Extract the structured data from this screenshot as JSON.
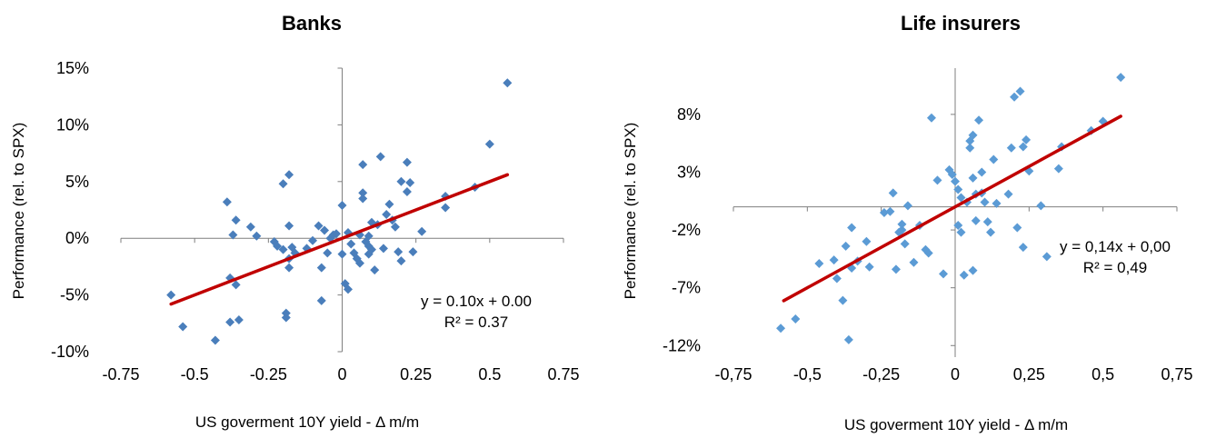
{
  "chart_data": [
    {
      "type": "scatter",
      "title": "Banks",
      "xlabel": "US goverment 10Y yield - Δ m/m",
      "ylabel": "Performance (rel. to SPX)",
      "xlim": [
        -0.75,
        0.75
      ],
      "ylim": [
        -0.1,
        0.15
      ],
      "x_ticks": [
        "-0.75",
        "-0.5",
        "-0.25",
        "0",
        "0.25",
        "0.5",
        "0.75"
      ],
      "x_tick_values": [
        -0.75,
        -0.5,
        -0.25,
        0,
        0.25,
        0.5,
        0.75
      ],
      "y_ticks": [
        "-10%",
        "-5%",
        "0%",
        "5%",
        "10%",
        "15%"
      ],
      "y_tick_values": [
        -0.1,
        -0.05,
        0,
        0.05,
        0.1,
        0.15
      ],
      "grid": false,
      "marker_color": "#4a7ebb",
      "trendline": {
        "slope": 0.1,
        "intercept": 0.0,
        "x_range": [
          -0.58,
          0.56
        ],
        "color": "#c00000"
      },
      "equation": "y = 0.10x + 0.00",
      "r_squared": "R² = 0.37",
      "points": [
        [
          -0.58,
          -0.05
        ],
        [
          -0.54,
          -0.078
        ],
        [
          -0.43,
          -0.09
        ],
        [
          -0.39,
          0.032
        ],
        [
          -0.38,
          -0.035
        ],
        [
          -0.37,
          0.003
        ],
        [
          -0.36,
          0.016
        ],
        [
          -0.36,
          -0.041
        ],
        [
          -0.35,
          -0.072
        ],
        [
          -0.38,
          -0.074
        ],
        [
          -0.31,
          0.01
        ],
        [
          -0.29,
          0.002
        ],
        [
          -0.23,
          -0.003
        ],
        [
          -0.22,
          -0.007
        ],
        [
          -0.2,
          0.048
        ],
        [
          -0.19,
          -0.066
        ],
        [
          -0.19,
          -0.07
        ],
        [
          -0.18,
          0.056
        ],
        [
          -0.18,
          0.011
        ],
        [
          -0.18,
          -0.018
        ],
        [
          -0.18,
          -0.026
        ],
        [
          -0.17,
          -0.008
        ],
        [
          -0.16,
          -0.013
        ],
        [
          -0.2,
          -0.01
        ],
        [
          -0.12,
          -0.009
        ],
        [
          -0.1,
          -0.002
        ],
        [
          -0.08,
          0.011
        ],
        [
          -0.07,
          -0.026
        ],
        [
          -0.07,
          -0.055
        ],
        [
          -0.06,
          0.007
        ],
        [
          -0.05,
          -0.013
        ],
        [
          -0.04,
          0.0
        ],
        [
          -0.03,
          0.003
        ],
        [
          -0.02,
          0.004
        ],
        [
          0.0,
          0.029
        ],
        [
          0.0,
          -0.014
        ],
        [
          0.01,
          -0.04
        ],
        [
          0.02,
          -0.045
        ],
        [
          0.02,
          0.005
        ],
        [
          0.03,
          -0.005
        ],
        [
          0.04,
          -0.013
        ],
        [
          0.05,
          -0.018
        ],
        [
          0.06,
          -0.022
        ],
        [
          0.06,
          0.003
        ],
        [
          0.07,
          0.065
        ],
        [
          0.07,
          0.035
        ],
        [
          0.07,
          0.04
        ],
        [
          0.08,
          -0.003
        ],
        [
          0.09,
          0.002
        ],
        [
          0.09,
          -0.007
        ],
        [
          0.09,
          -0.014
        ],
        [
          0.1,
          0.014
        ],
        [
          0.1,
          -0.01
        ],
        [
          0.11,
          -0.028
        ],
        [
          0.12,
          0.012
        ],
        [
          0.13,
          0.072
        ],
        [
          0.14,
          -0.009
        ],
        [
          0.15,
          0.021
        ],
        [
          0.16,
          0.03
        ],
        [
          0.17,
          0.016
        ],
        [
          0.18,
          0.01
        ],
        [
          0.19,
          -0.012
        ],
        [
          0.2,
          0.05
        ],
        [
          0.2,
          -0.02
        ],
        [
          0.22,
          0.067
        ],
        [
          0.22,
          0.041
        ],
        [
          0.23,
          0.049
        ],
        [
          0.24,
          -0.012
        ],
        [
          0.27,
          0.006
        ],
        [
          0.35,
          0.037
        ],
        [
          0.35,
          0.027
        ],
        [
          0.45,
          0.045
        ],
        [
          0.5,
          0.083
        ],
        [
          0.56,
          0.137
        ]
      ]
    },
    {
      "type": "scatter",
      "title": "Life insurers",
      "xlabel": "US goverment 10Y yield - Δ m/m",
      "ylabel": "Performance (rel. to SPX)",
      "xlim": [
        -0.75,
        0.75
      ],
      "ylim": [
        -0.13,
        0.12
      ],
      "x_axis_crosses_at": 0.0,
      "x_ticks": [
        "-0,75",
        "-0,5",
        "-0,25",
        "0",
        "0,25",
        "0,5",
        "0,75"
      ],
      "x_tick_values": [
        -0.75,
        -0.5,
        -0.25,
        0,
        0.25,
        0.5,
        0.75
      ],
      "y_ticks": [
        "-12%",
        "-7%",
        "-2%",
        "3%",
        "8%"
      ],
      "y_tick_values": [
        -0.12,
        -0.07,
        -0.02,
        0.03,
        0.08
      ],
      "grid": false,
      "marker_color": "#5b9bd5",
      "trendline": {
        "slope": 0.14,
        "intercept": 0.0,
        "x_range": [
          -0.58,
          0.56
        ],
        "color": "#c00000"
      },
      "equation": "y = 0,14x + 0,00",
      "r_squared": "R² = 0,49",
      "points": [
        [
          -0.59,
          -0.105
        ],
        [
          -0.54,
          -0.097
        ],
        [
          -0.46,
          -0.049
        ],
        [
          -0.41,
          -0.046
        ],
        [
          -0.4,
          -0.062
        ],
        [
          -0.38,
          -0.081
        ],
        [
          -0.37,
          -0.034
        ],
        [
          -0.36,
          -0.115
        ],
        [
          -0.35,
          -0.018
        ],
        [
          -0.35,
          -0.053
        ],
        [
          -0.33,
          -0.047
        ],
        [
          -0.3,
          -0.03
        ],
        [
          -0.29,
          -0.052
        ],
        [
          -0.24,
          -0.005
        ],
        [
          -0.22,
          -0.004
        ],
        [
          -0.21,
          0.012
        ],
        [
          -0.2,
          -0.054
        ],
        [
          -0.19,
          -0.022
        ],
        [
          -0.18,
          -0.02
        ],
        [
          -0.18,
          -0.015
        ],
        [
          -0.17,
          -0.032
        ],
        [
          -0.16,
          0.001
        ],
        [
          -0.14,
          -0.048
        ],
        [
          -0.12,
          -0.016
        ],
        [
          -0.1,
          -0.037
        ],
        [
          -0.09,
          -0.04
        ],
        [
          -0.08,
          0.077
        ],
        [
          -0.06,
          0.023
        ],
        [
          -0.04,
          -0.058
        ],
        [
          -0.02,
          0.032
        ],
        [
          -0.01,
          0.028
        ],
        [
          0.0,
          0.022
        ],
        [
          0.01,
          0.015
        ],
        [
          0.01,
          -0.016
        ],
        [
          0.02,
          0.008
        ],
        [
          0.02,
          -0.022
        ],
        [
          0.03,
          -0.059
        ],
        [
          0.04,
          0.004
        ],
        [
          0.05,
          0.057
        ],
        [
          0.05,
          0.051
        ],
        [
          0.06,
          0.062
        ],
        [
          0.06,
          -0.055
        ],
        [
          0.06,
          0.025
        ],
        [
          0.07,
          0.011
        ],
        [
          0.07,
          -0.012
        ],
        [
          0.08,
          0.075
        ],
        [
          0.09,
          0.03
        ],
        [
          0.09,
          0.012
        ],
        [
          0.1,
          0.004
        ],
        [
          0.11,
          -0.013
        ],
        [
          0.12,
          -0.022
        ],
        [
          0.13,
          0.041
        ],
        [
          0.14,
          0.003
        ],
        [
          0.18,
          0.011
        ],
        [
          0.19,
          0.051
        ],
        [
          0.2,
          0.095
        ],
        [
          0.21,
          -0.018
        ],
        [
          0.22,
          0.1
        ],
        [
          0.23,
          -0.035
        ],
        [
          0.23,
          0.052
        ],
        [
          0.24,
          0.058
        ],
        [
          0.25,
          0.031
        ],
        [
          0.29,
          0.001
        ],
        [
          0.31,
          -0.043
        ],
        [
          0.35,
          0.033
        ],
        [
          0.36,
          0.052
        ],
        [
          0.46,
          0.066
        ],
        [
          0.5,
          0.074
        ],
        [
          0.56,
          0.112
        ]
      ]
    }
  ]
}
